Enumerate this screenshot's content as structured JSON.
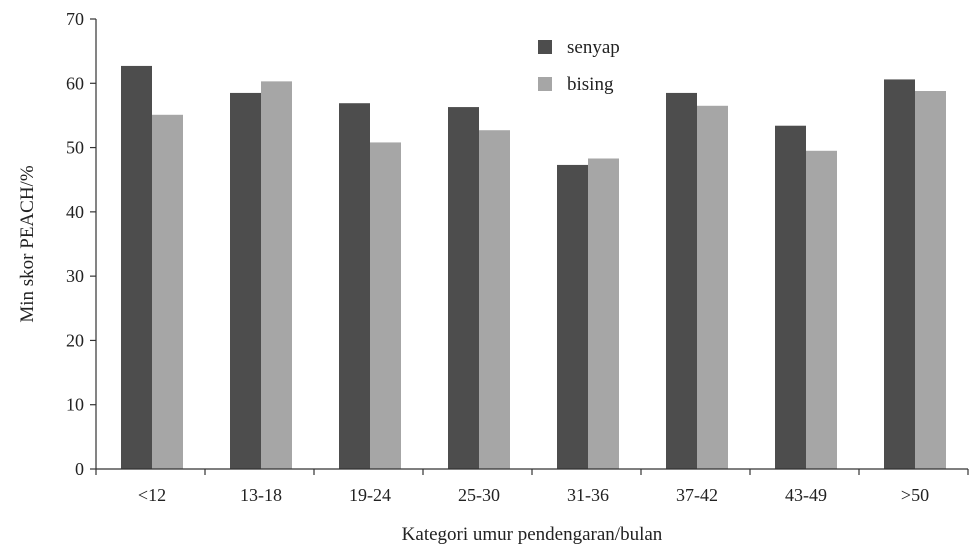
{
  "chart_data": {
    "type": "bar",
    "title": "",
    "xlabel": "Kategori umur pendengaran/bulan",
    "ylabel": "Min skor PEACH/%",
    "categories": [
      "<12",
      "13-18",
      "19-24",
      "25-30",
      "31-36",
      "37-42",
      "43-49",
      ">50"
    ],
    "series": [
      {
        "name": "senyap",
        "color": "#4d4d4d",
        "values": [
          62.7,
          58.5,
          56.9,
          56.3,
          47.3,
          58.5,
          53.4,
          60.6
        ]
      },
      {
        "name": "bising",
        "color": "#a6a6a6",
        "values": [
          55.1,
          60.3,
          50.8,
          52.7,
          48.3,
          56.5,
          49.5,
          58.8
        ]
      }
    ],
    "ylim": [
      0,
      70
    ],
    "yticks": [
      0,
      10,
      20,
      30,
      40,
      50,
      60,
      70
    ],
    "grid": false,
    "legend_position": "top-center"
  }
}
